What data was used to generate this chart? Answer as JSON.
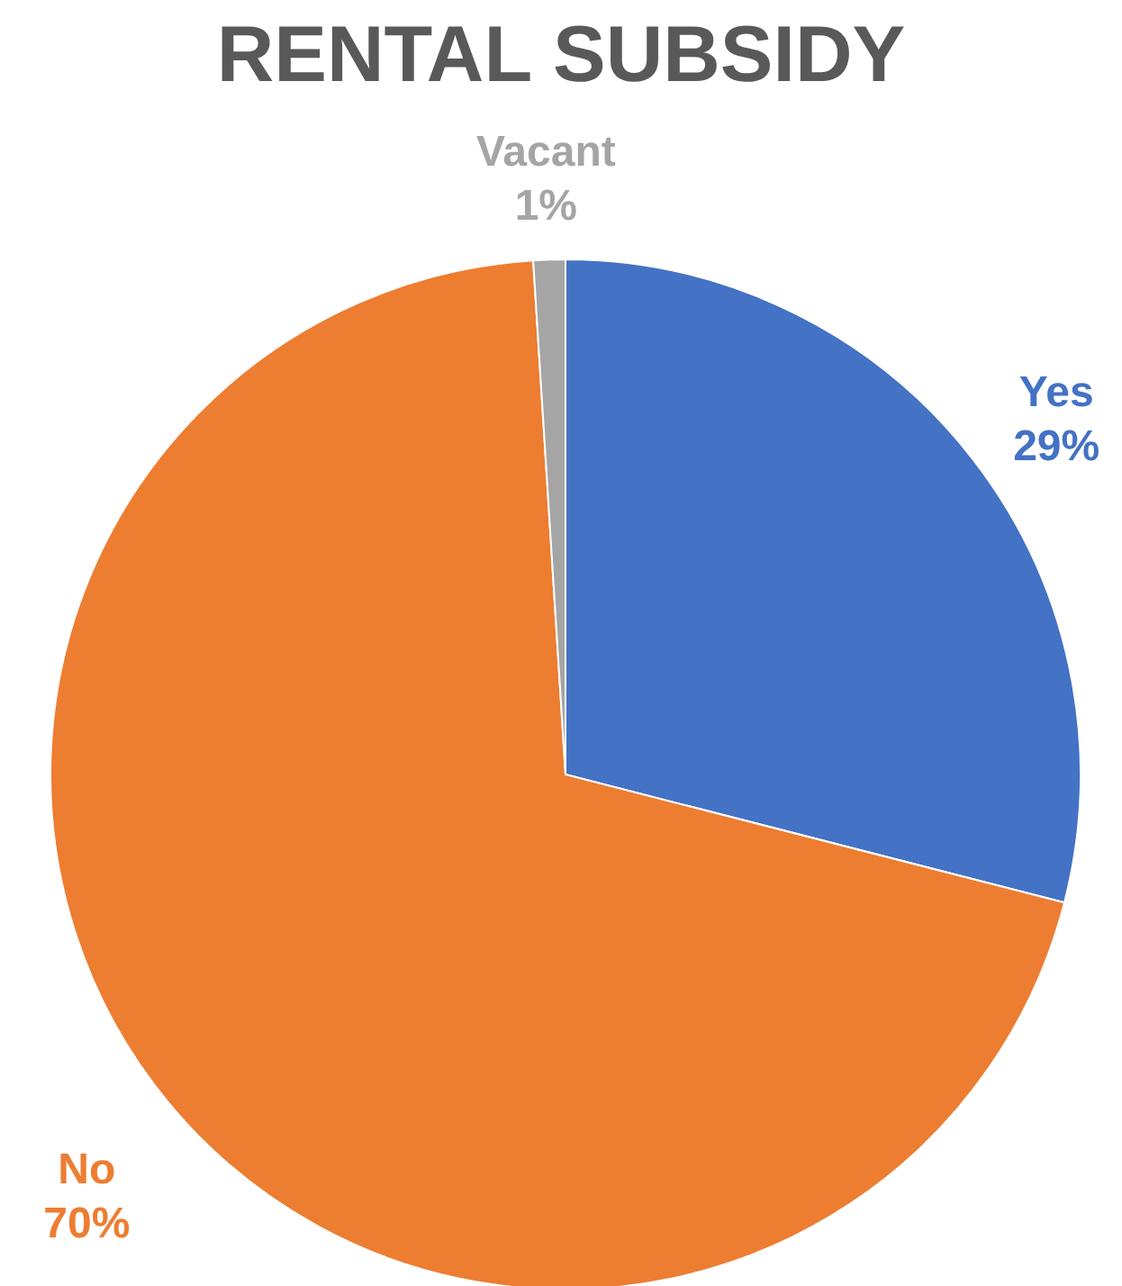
{
  "chart_data": {
    "type": "pie",
    "title": "RENTAL SUBSIDY",
    "categories": [
      "Yes",
      "No",
      "Vacant"
    ],
    "values": [
      29,
      70,
      1
    ],
    "colors": [
      "#4472c4",
      "#ed7d31",
      "#a5a5a5"
    ],
    "value_labels": [
      "29%",
      "70%",
      "1%"
    ],
    "legend": false
  }
}
